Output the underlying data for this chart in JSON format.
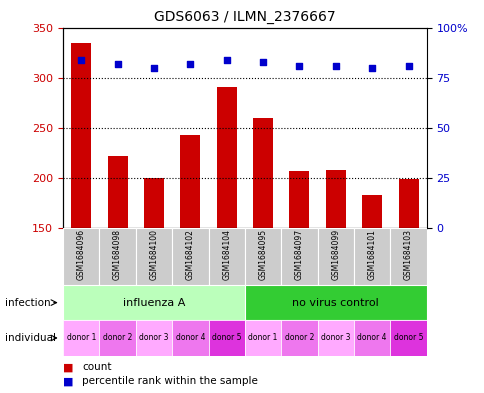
{
  "title": "GDS6063 / ILMN_2376667",
  "samples": [
    "GSM1684096",
    "GSM1684098",
    "GSM1684100",
    "GSM1684102",
    "GSM1684104",
    "GSM1684095",
    "GSM1684097",
    "GSM1684099",
    "GSM1684101",
    "GSM1684103"
  ],
  "bar_values": [
    335,
    222,
    200,
    243,
    291,
    260,
    207,
    208,
    183,
    199
  ],
  "percentile_values": [
    84,
    82,
    80,
    82,
    84,
    83,
    81,
    81,
    80,
    81
  ],
  "ylim_left": [
    150,
    350
  ],
  "ylim_right": [
    0,
    100
  ],
  "yticks_left": [
    150,
    200,
    250,
    300,
    350
  ],
  "yticks_right": [
    0,
    25,
    50,
    75,
    100
  ],
  "ytick_labels_right": [
    "0",
    "25",
    "50",
    "75",
    "100%"
  ],
  "bar_color": "#CC0000",
  "dot_color": "#0000CC",
  "infection_groups": [
    {
      "label": "influenza A",
      "start": 0,
      "end": 5,
      "color": "#BBFFBB"
    },
    {
      "label": "no virus control",
      "start": 5,
      "end": 10,
      "color": "#33CC33"
    }
  ],
  "individual_labels": [
    "donor 1",
    "donor 2",
    "donor 3",
    "donor 4",
    "donor 5",
    "donor 1",
    "donor 2",
    "donor 3",
    "donor 4",
    "donor 5"
  ],
  "individual_colors": [
    "#FFAAFF",
    "#EE77EE",
    "#FFAAFF",
    "#EE77EE",
    "#DD33DD",
    "#FFAAFF",
    "#EE77EE",
    "#FFAAFF",
    "#EE77EE",
    "#DD33DD"
  ],
  "infection_row_label": "infection",
  "individual_row_label": "individual",
  "legend_count_color": "#CC0000",
  "legend_dot_color": "#0000CC",
  "sample_bg_color": "#CCCCCC",
  "sample_bg_edge": "#FFFFFF"
}
